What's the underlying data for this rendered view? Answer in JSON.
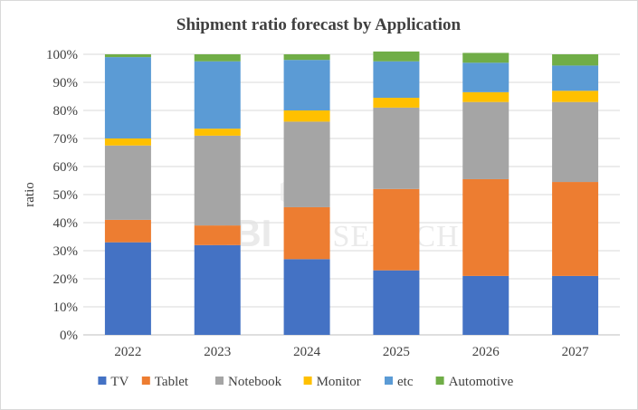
{
  "chart_data": {
    "type": "bar",
    "stacked": true,
    "title": "Shipment ratio forecast by Application",
    "ylabel": "ratio",
    "xlabel": "",
    "categories": [
      "2022",
      "2023",
      "2024",
      "2025",
      "2026",
      "2027"
    ],
    "y_ticks": [
      "0%",
      "10%",
      "20%",
      "30%",
      "40%",
      "50%",
      "60%",
      "70%",
      "80%",
      "90%",
      "100%"
    ],
    "ylim": [
      0,
      1
    ],
    "grid": true,
    "legend_position": "bottom",
    "series": [
      {
        "name": "TV",
        "color": "#4472c4",
        "values": [
          0.33,
          0.32,
          0.27,
          0.23,
          0.21,
          0.21
        ]
      },
      {
        "name": "Tablet",
        "color": "#ed7d31",
        "values": [
          0.08,
          0.07,
          0.185,
          0.29,
          0.345,
          0.335
        ]
      },
      {
        "name": "Notebook",
        "color": "#a5a5a5",
        "values": [
          0.265,
          0.32,
          0.305,
          0.29,
          0.275,
          0.285
        ]
      },
      {
        "name": "Monitor",
        "color": "#ffc000",
        "values": [
          0.025,
          0.025,
          0.04,
          0.035,
          0.035,
          0.04
        ]
      },
      {
        "name": "etc",
        "color": "#5b9bd5",
        "values": [
          0.29,
          0.24,
          0.18,
          0.13,
          0.105,
          0.09
        ]
      },
      {
        "name": "Automotive",
        "color": "#70ad47",
        "values": [
          0.01,
          0.025,
          0.02,
          0.035,
          0.035,
          0.04
        ]
      }
    ]
  },
  "watermark": {
    "text": "RESEARCH",
    "logo": "UBI"
  }
}
